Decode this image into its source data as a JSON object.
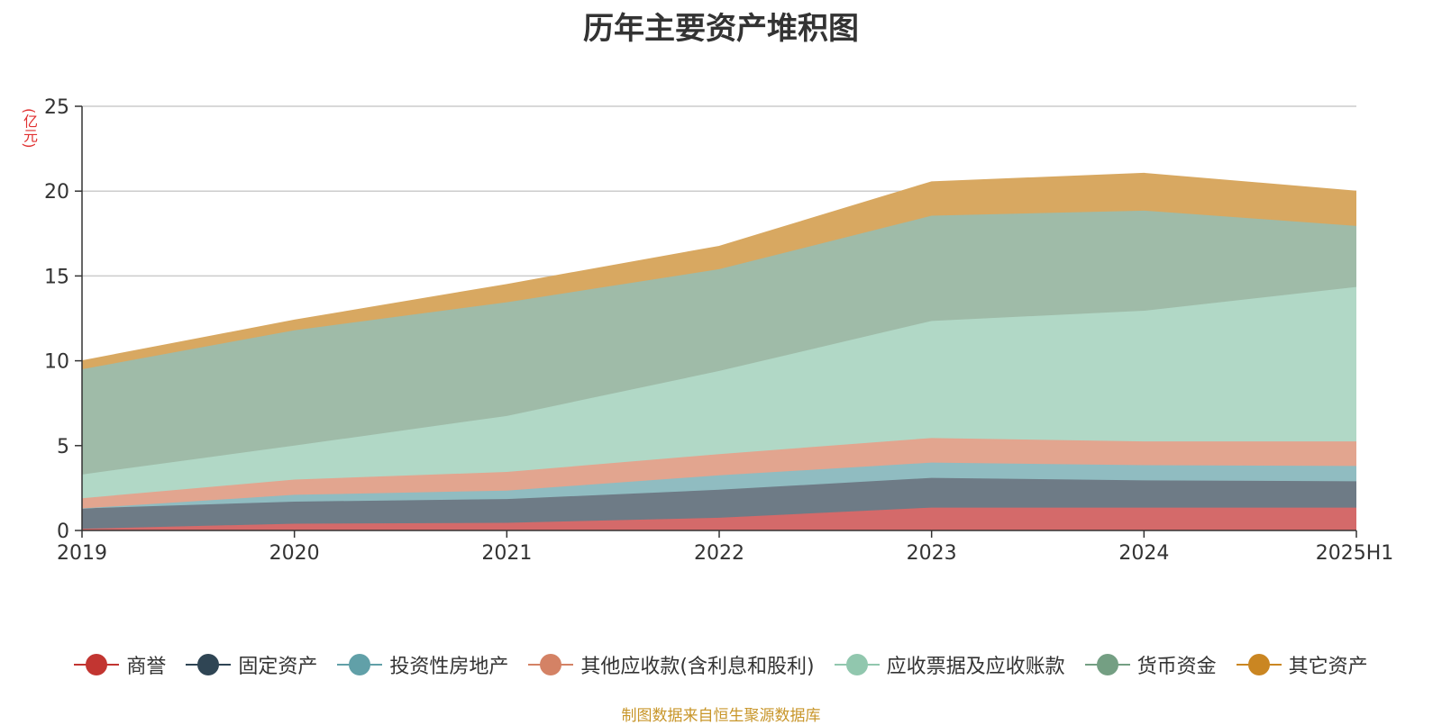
{
  "chart_data": {
    "type": "area",
    "stacked": true,
    "title": "历年主要资产堆积图",
    "ylabel": "(亿元)",
    "categories": [
      "2019",
      "2020",
      "2021",
      "2022",
      "2023",
      "2024",
      "2025H1"
    ],
    "ylim": [
      0,
      25
    ],
    "yticks": [
      0,
      5,
      10,
      15,
      20,
      25
    ],
    "grid": true,
    "legend_position": "bottom",
    "series": [
      {
        "name": "商誉",
        "color": "#c23531",
        "fill": "#d46a6a",
        "values": [
          0.1,
          0.4,
          0.45,
          0.75,
          1.35,
          1.35,
          1.35
        ]
      },
      {
        "name": "固定资产",
        "color": "#2f4554",
        "fill": "#6e7b86",
        "values": [
          1.2,
          1.3,
          1.4,
          1.65,
          1.75,
          1.6,
          1.55
        ]
      },
      {
        "name": "投资性房地产",
        "color": "#61a0a8",
        "fill": "#90bcc1",
        "values": [
          0.0,
          0.4,
          0.5,
          0.85,
          0.9,
          0.9,
          0.9
        ]
      },
      {
        "name": "其他应收款(含利息和股利)",
        "color": "#d48265",
        "fill": "#e2a58f",
        "values": [
          0.6,
          0.9,
          1.1,
          1.25,
          1.45,
          1.4,
          1.45
        ]
      },
      {
        "name": "应收票据及应收账款",
        "color": "#91c7ae",
        "fill": "#b1d8c6",
        "values": [
          1.4,
          2.0,
          3.3,
          4.9,
          6.9,
          7.7,
          9.1
        ]
      },
      {
        "name": "货币资金",
        "color": "#749f83",
        "fill": "#9fbba8",
        "values": [
          6.2,
          6.8,
          6.7,
          6.0,
          6.2,
          5.9,
          3.6
        ]
      },
      {
        "name": "其它资产",
        "color": "#ca8622",
        "fill": "#d8a861",
        "values": [
          0.5,
          0.6,
          1.05,
          1.35,
          2.0,
          2.2,
          2.05
        ]
      }
    ]
  },
  "source": "制图数据来自恒生聚源数据库"
}
